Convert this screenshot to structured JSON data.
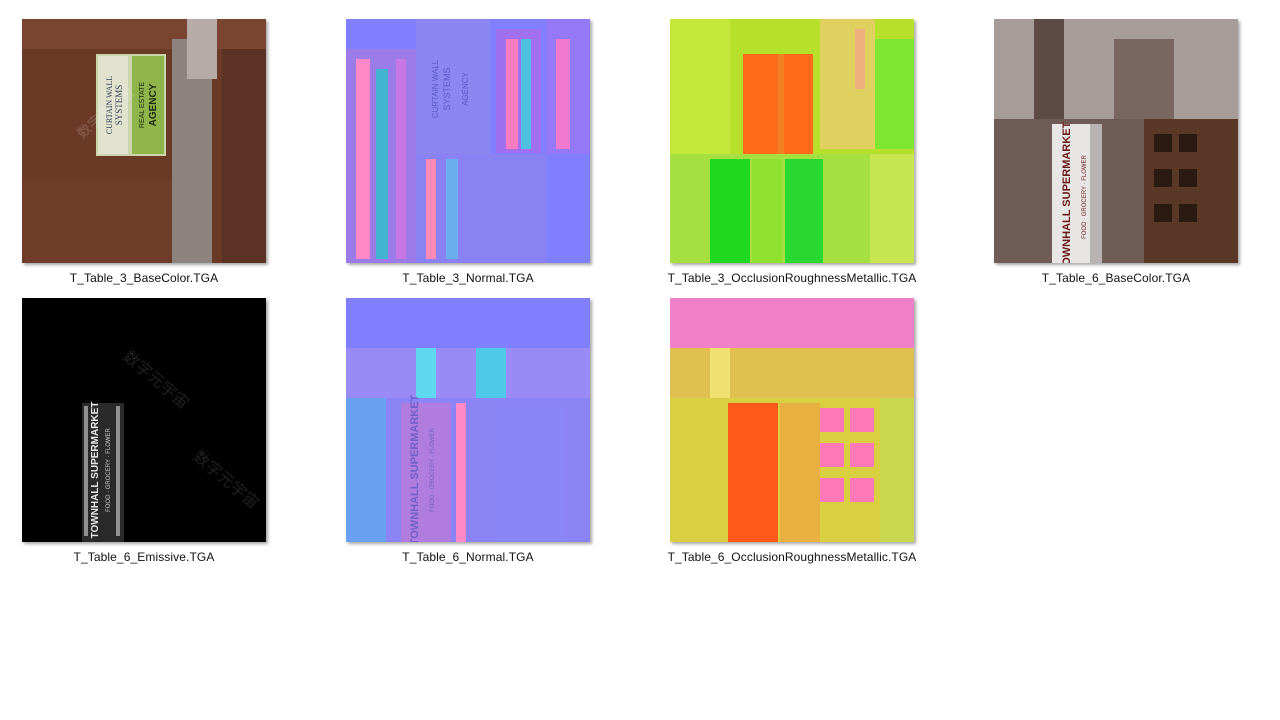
{
  "files": [
    {
      "name": "T_Table_3_BaseColor.TGA",
      "kind": "basecolor-3",
      "label_lines": [
        "CURTAIN WALL",
        "SYSTEMS",
        "REAL ESTATE",
        "AGENCY"
      ]
    },
    {
      "name": "T_Table_3_Normal.TGA",
      "kind": "normal-3",
      "label_lines": [
        "CURTAIN WALL",
        "SYSTEMS",
        "REAL ESTATE",
        "AGENCY"
      ]
    },
    {
      "name": "T_Table_3_OcclusionRoughnessMetallic.TGA",
      "kind": "orm-3",
      "label_lines": []
    },
    {
      "name": "T_Table_6_BaseColor.TGA",
      "kind": "basecolor-6",
      "label_lines": [
        "TOWNHALL SUPERMARKET",
        "FOOD · GROCERY · FLOWER"
      ]
    },
    {
      "name": "T_Table_6_Emissive.TGA",
      "kind": "emissive-6",
      "label_lines": [
        "TOWNHALL SUPERMARKET",
        "FOOD · GROCERY · FLOWER"
      ]
    },
    {
      "name": "T_Table_6_Normal.TGA",
      "kind": "normal-6",
      "label_lines": [
        "TOWNHALL SUPERMARKET",
        "FOOD · GROCERY · FLOWER"
      ]
    },
    {
      "name": "T_Table_6_OcclusionRoughnessMetallic.TGA",
      "kind": "orm-6",
      "label_lines": []
    }
  ],
  "watermark": "数字元宇宙"
}
